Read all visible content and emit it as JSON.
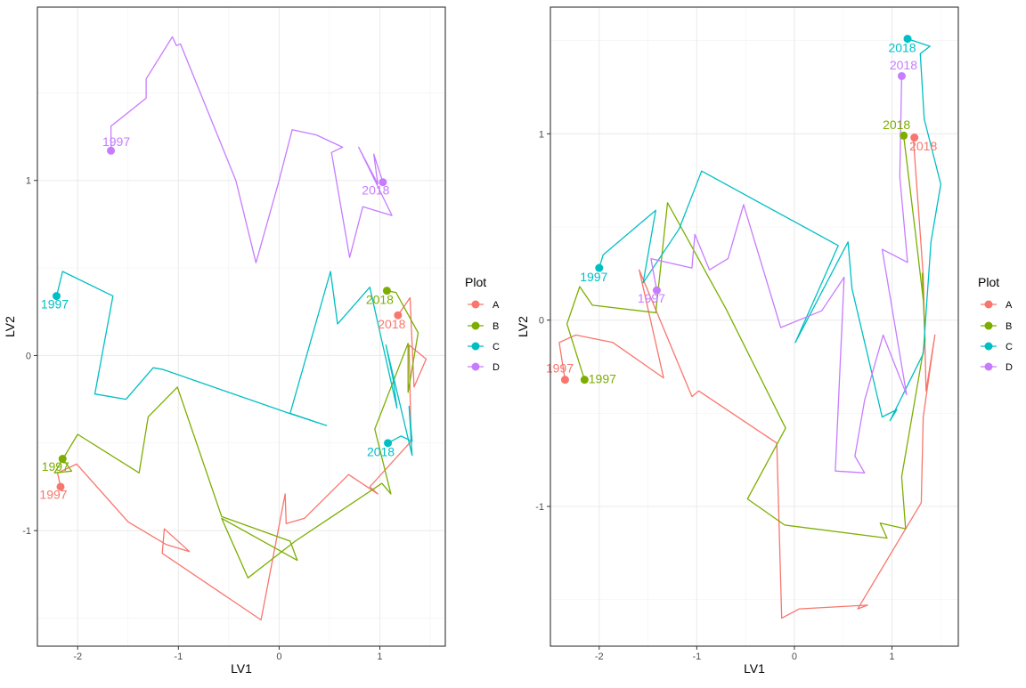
{
  "chart_data": [
    {
      "type": "line",
      "xlabel": "LV1",
      "ylabel": "LV2",
      "xlim": [
        -2.4,
        1.65
      ],
      "ylim": [
        -1.66,
        1.99
      ],
      "xticks": [
        -2,
        -1,
        0,
        1
      ],
      "yticks": [
        -1,
        0,
        1
      ],
      "grid": true,
      "legend_title": "Plot",
      "legend_position": "right",
      "series": [
        {
          "name": "A",
          "color": "#F8766D",
          "start_label": "1997",
          "end_label": "2018",
          "points": [
            [
              -2.17,
              -0.75
            ],
            [
              -2.2,
              -0.67
            ],
            [
              -2.01,
              -0.62
            ],
            [
              -1.5,
              -0.95
            ],
            [
              -1.12,
              -1.08
            ],
            [
              -0.89,
              -1.12
            ],
            [
              -1.14,
              -0.99
            ],
            [
              -1.16,
              -1.13
            ],
            [
              -0.18,
              -1.51
            ],
            [
              0.06,
              -0.79
            ],
            [
              0.07,
              -0.96
            ],
            [
              0.25,
              -0.93
            ],
            [
              0.69,
              -0.68
            ],
            [
              0.98,
              -0.79
            ],
            [
              0.9,
              -0.75
            ],
            [
              1.31,
              -0.49
            ],
            [
              1.29,
              0.06
            ],
            [
              1.46,
              -0.02
            ],
            [
              1.34,
              -0.18
            ],
            [
              1.3,
              0.33
            ],
            [
              1.18,
              0.23
            ]
          ]
        },
        {
          "name": "B",
          "color": "#7CAE00",
          "start_label": "1997",
          "end_label": "2018",
          "points": [
            [
              -2.15,
              -0.59
            ],
            [
              -2.06,
              -0.66
            ],
            [
              -2.23,
              -0.67
            ],
            [
              -2.0,
              -0.45
            ],
            [
              -1.39,
              -0.67
            ],
            [
              -1.3,
              -0.35
            ],
            [
              -1.01,
              -0.18
            ],
            [
              -0.57,
              -0.92
            ],
            [
              0.11,
              -1.06
            ],
            [
              0.18,
              -1.17
            ],
            [
              -0.57,
              -0.93
            ],
            [
              -0.31,
              -1.27
            ],
            [
              0.16,
              -1.06
            ],
            [
              1.02,
              -0.73
            ],
            [
              1.11,
              -0.79
            ],
            [
              0.95,
              -0.42
            ],
            [
              1.28,
              0.07
            ],
            [
              1.28,
              -0.21
            ],
            [
              1.38,
              0.13
            ],
            [
              1.16,
              0.36
            ],
            [
              1.07,
              0.37
            ]
          ]
        },
        {
          "name": "C",
          "color": "#00BFC4",
          "start_label": "1997",
          "end_label": "2018",
          "points": [
            [
              -2.21,
              0.34
            ],
            [
              -2.15,
              0.48
            ],
            [
              -1.65,
              0.34
            ],
            [
              -1.83,
              -0.22
            ],
            [
              -1.52,
              -0.25
            ],
            [
              -1.25,
              -0.07
            ],
            [
              -1.15,
              -0.08
            ],
            [
              0.1,
              -0.33
            ],
            [
              0.47,
              -0.4
            ],
            [
              0.11,
              -0.33
            ],
            [
              0.51,
              0.48
            ],
            [
              0.58,
              0.18
            ],
            [
              0.9,
              0.39
            ],
            [
              1.17,
              -0.3
            ],
            [
              1.13,
              -0.13
            ],
            [
              1.06,
              0.06
            ],
            [
              1.32,
              -0.57
            ],
            [
              1.29,
              -0.29
            ],
            [
              1.32,
              -0.49
            ],
            [
              1.21,
              -0.46
            ],
            [
              1.08,
              -0.5
            ]
          ]
        },
        {
          "name": "D",
          "color": "#C77CFF",
          "start_label": "1997",
          "end_label": "2018",
          "points": [
            [
              -1.67,
              1.17
            ],
            [
              -1.67,
              1.31
            ],
            [
              -1.32,
              1.47
            ],
            [
              -1.32,
              1.58
            ],
            [
              -1.06,
              1.82
            ],
            [
              -1.02,
              1.77
            ],
            [
              -0.98,
              1.78
            ],
            [
              -0.43,
              1.0
            ],
            [
              -0.23,
              0.53
            ],
            [
              -0.01,
              0.98
            ],
            [
              0.13,
              1.29
            ],
            [
              0.37,
              1.26
            ],
            [
              0.63,
              1.19
            ],
            [
              0.52,
              1.16
            ],
            [
              0.7,
              0.56
            ],
            [
              0.83,
              0.85
            ],
            [
              1.12,
              0.8
            ],
            [
              0.79,
              1.19
            ],
            [
              0.98,
              0.98
            ],
            [
              0.94,
              1.15
            ],
            [
              1.03,
              0.99
            ]
          ]
        }
      ]
    },
    {
      "type": "line",
      "xlabel": "LV1",
      "ylabel": "LV2",
      "xlim": [
        -2.5,
        1.68
      ],
      "ylim": [
        -1.75,
        1.68
      ],
      "xticks": [
        -2,
        -1,
        0,
        1
      ],
      "yticks": [
        -1,
        0,
        1
      ],
      "grid": true,
      "legend_title": "Plot",
      "legend_position": "right",
      "series": [
        {
          "name": "A",
          "color": "#F8766D",
          "start_label": "1997",
          "end_label": "2018",
          "points": [
            [
              -2.35,
              -0.32
            ],
            [
              -2.41,
              -0.12
            ],
            [
              -2.24,
              -0.08
            ],
            [
              -1.86,
              -0.12
            ],
            [
              -1.34,
              -0.31
            ],
            [
              -1.59,
              0.27
            ],
            [
              -1.05,
              -0.41
            ],
            [
              -0.98,
              -0.38
            ],
            [
              -0.18,
              -0.66
            ],
            [
              -0.13,
              -1.6
            ],
            [
              0.05,
              -1.55
            ],
            [
              0.75,
              -1.53
            ],
            [
              0.65,
              -1.55
            ],
            [
              1.3,
              -0.98
            ],
            [
              1.32,
              -0.52
            ],
            [
              1.44,
              -0.08
            ],
            [
              1.35,
              -0.38
            ],
            [
              1.32,
              0.24
            ],
            [
              1.22,
              0.97
            ],
            [
              1.23,
              0.98
            ]
          ]
        },
        {
          "name": "B",
          "color": "#7CAE00",
          "start_label": "1997",
          "end_label": "2018",
          "points": [
            [
              -2.15,
              -0.32
            ],
            [
              -2.33,
              -0.02
            ],
            [
              -2.2,
              0.18
            ],
            [
              -2.07,
              0.08
            ],
            [
              -1.42,
              0.04
            ],
            [
              -1.3,
              0.63
            ],
            [
              -1.12,
              0.46
            ],
            [
              -0.7,
              0.06
            ],
            [
              -0.09,
              -0.58
            ],
            [
              -0.48,
              -0.96
            ],
            [
              -0.1,
              -1.1
            ],
            [
              0.95,
              -1.17
            ],
            [
              0.88,
              -1.09
            ],
            [
              1.14,
              -1.12
            ],
            [
              1.1,
              -0.84
            ],
            [
              1.34,
              -0.11
            ],
            [
              1.31,
              0.25
            ],
            [
              1.32,
              0.11
            ],
            [
              1.24,
              0.47
            ],
            [
              1.12,
              0.99
            ]
          ]
        },
        {
          "name": "C",
          "color": "#00BFC4",
          "start_label": "1997",
          "end_label": "2018",
          "points": [
            [
              -2.0,
              0.28
            ],
            [
              -1.96,
              0.35
            ],
            [
              -1.42,
              0.59
            ],
            [
              -1.55,
              0.2
            ],
            [
              -1.18,
              0.49
            ],
            [
              -0.95,
              0.8
            ],
            [
              0.45,
              0.4
            ],
            [
              0.01,
              -0.12
            ],
            [
              0.55,
              0.42
            ],
            [
              0.59,
              0.17
            ],
            [
              0.9,
              -0.52
            ],
            [
              1.05,
              -0.48
            ],
            [
              0.98,
              -0.54
            ],
            [
              1.32,
              -0.18
            ],
            [
              1.4,
              0.42
            ],
            [
              1.5,
              0.73
            ],
            [
              1.33,
              1.08
            ],
            [
              1.29,
              1.43
            ],
            [
              1.39,
              1.47
            ],
            [
              1.16,
              1.51
            ]
          ]
        },
        {
          "name": "D",
          "color": "#C77CFF",
          "start_label": "1997",
          "end_label": "2018",
          "points": [
            [
              -1.41,
              0.16
            ],
            [
              -1.47,
              0.33
            ],
            [
              -1.05,
              0.28
            ],
            [
              -1.02,
              0.46
            ],
            [
              -0.87,
              0.27
            ],
            [
              -0.68,
              0.33
            ],
            [
              -0.52,
              0.62
            ],
            [
              -0.14,
              -0.04
            ],
            [
              0.28,
              0.05
            ],
            [
              0.51,
              0.23
            ],
            [
              0.42,
              -0.81
            ],
            [
              0.72,
              -0.82
            ],
            [
              0.62,
              -0.73
            ],
            [
              0.72,
              -0.43
            ],
            [
              0.91,
              -0.08
            ],
            [
              1.15,
              -0.4
            ],
            [
              0.9,
              0.38
            ],
            [
              1.16,
              0.31
            ],
            [
              1.08,
              0.77
            ],
            [
              1.1,
              1.31
            ]
          ]
        }
      ]
    }
  ]
}
